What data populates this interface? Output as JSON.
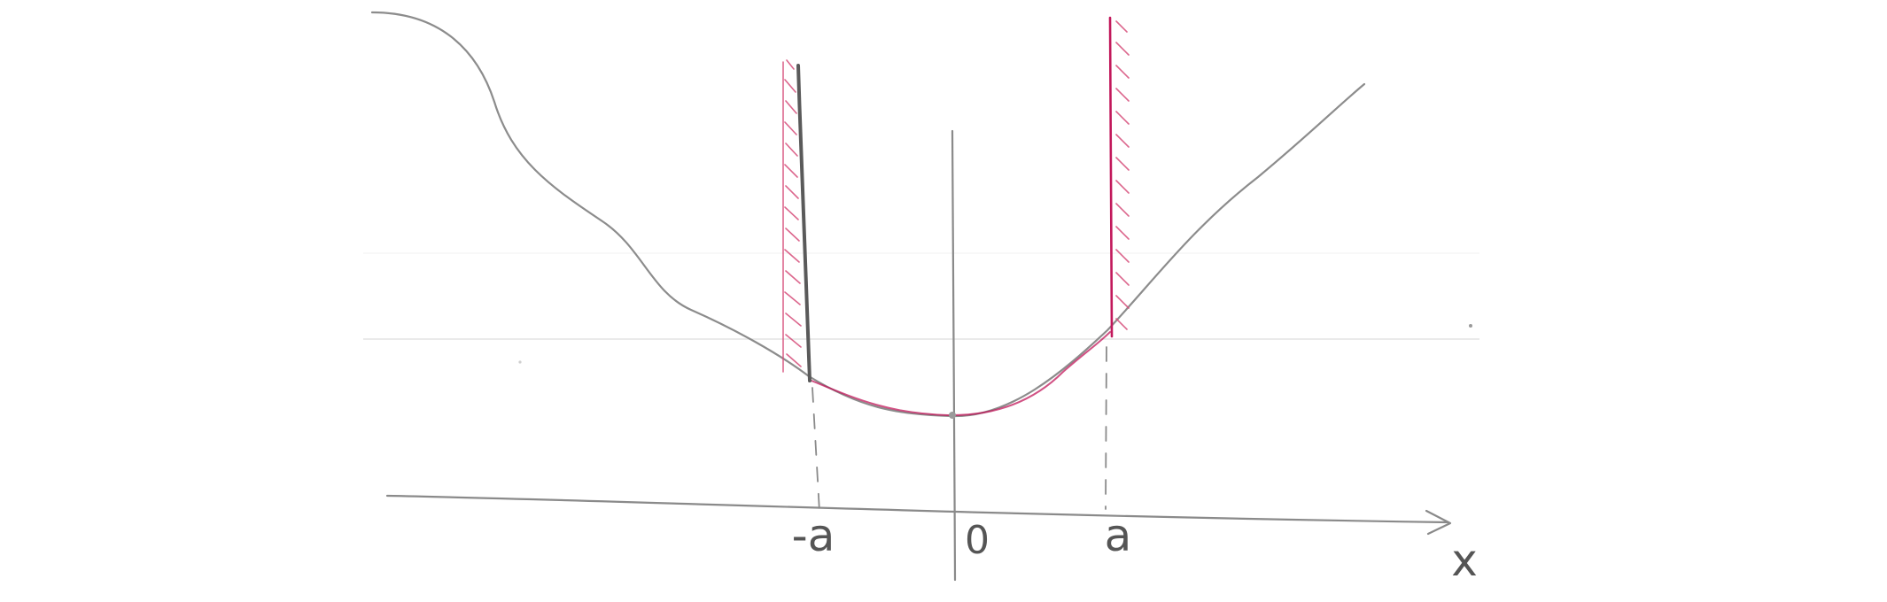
{
  "diagram": {
    "labels": {
      "neg_a": "-a",
      "origin": "0",
      "pos_a": "a",
      "x_axis": "x"
    },
    "colors": {
      "pencil": "#8a8a8a",
      "dark_pencil": "#5a5a5a",
      "wall_red": "#c2185b",
      "hatch_red": "#d64d7a",
      "guide": "#e6e6e6"
    }
  }
}
